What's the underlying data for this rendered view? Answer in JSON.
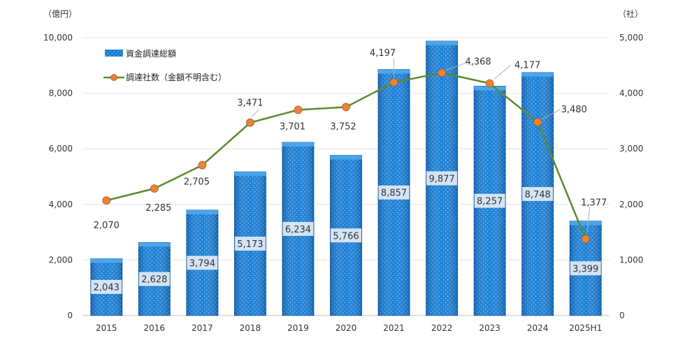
{
  "chart_data": {
    "type": "bar+line",
    "categories": [
      "2015",
      "2016",
      "2017",
      "2018",
      "2019",
      "2020",
      "2021",
      "2022",
      "2023",
      "2024",
      "2025H1"
    ],
    "series": [
      {
        "name": "資金調達総額",
        "type": "bar",
        "axis": "left",
        "values": [
          2043,
          2628,
          3794,
          5173,
          6234,
          5766,
          8857,
          9877,
          8257,
          8748,
          3399
        ],
        "labels": [
          "2,043",
          "2,628",
          "3,794",
          "5,173",
          "6,234",
          "5,766",
          "8,857",
          "9,877",
          "8,257",
          "8,748",
          "3,399"
        ],
        "color": "#1a7fd4"
      },
      {
        "name": "調達社数（金額不明含む）",
        "type": "line",
        "axis": "right",
        "values": [
          2070,
          2285,
          2705,
          3471,
          3701,
          3752,
          4197,
          4368,
          4177,
          3480,
          1377
        ],
        "labels": [
          "2,070",
          "2,285",
          "2,705",
          "3,471",
          "3,701",
          "3,752",
          "4,197",
          "4,368",
          "4,177",
          "3,480",
          "1,377"
        ],
        "color": "#5a8a2e",
        "marker_color": "#e8833a"
      }
    ],
    "y_left": {
      "unit": "（億円）",
      "ylim": [
        0,
        10000
      ],
      "ticks": [
        0,
        2000,
        4000,
        6000,
        8000,
        10000
      ],
      "tick_labels": [
        "0",
        "2,000",
        "4,000",
        "6,000",
        "8,000",
        "10,000"
      ]
    },
    "y_right": {
      "unit": "（社）",
      "ylim": [
        0,
        5000
      ],
      "ticks": [
        0,
        1000,
        2000,
        3000,
        4000,
        5000
      ],
      "tick_labels": [
        "0",
        "1,000",
        "2,000",
        "3,000",
        "4,000",
        "5,000"
      ]
    },
    "grid": true,
    "legend": "top-left"
  }
}
